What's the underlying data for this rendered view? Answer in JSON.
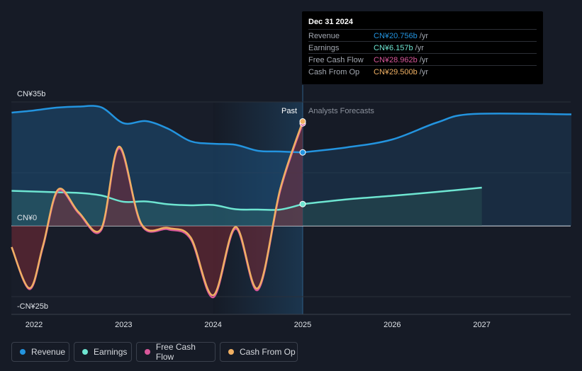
{
  "chart_data": {
    "type": "line",
    "y_axis": {
      "tick_labels": [
        "CN¥35b",
        "CN¥0",
        "-CN¥25b"
      ],
      "ylim": [
        -25,
        35
      ],
      "unit": "CN¥ billions"
    },
    "x_axis": {
      "tick_labels": [
        "2022",
        "2023",
        "2024",
        "2025",
        "2026",
        "2027"
      ],
      "xlim": [
        2021.75,
        2028.0
      ]
    },
    "past_label": "Past",
    "forecast_label": "Analysts Forecasts",
    "past_end": 2025.0,
    "series": [
      {
        "name": "Revenue",
        "color": "#2394df",
        "past": [
          [
            2021.75,
            32.0
          ],
          [
            2022.0,
            32.6
          ],
          [
            2022.25,
            33.4
          ],
          [
            2022.5,
            33.7
          ],
          [
            2022.75,
            33.5
          ],
          [
            2023.0,
            29.0
          ],
          [
            2023.25,
            29.6
          ],
          [
            2023.5,
            27.4
          ],
          [
            2023.75,
            23.9
          ],
          [
            2024.0,
            23.2
          ],
          [
            2024.25,
            22.9
          ],
          [
            2024.5,
            21.2
          ],
          [
            2024.75,
            21.0
          ],
          [
            2025.0,
            20.756
          ]
        ],
        "forecast": [
          [
            2025.0,
            20.756
          ],
          [
            2025.5,
            22.2
          ],
          [
            2026.0,
            24.4
          ],
          [
            2026.5,
            29.2
          ],
          [
            2026.9,
            31.6
          ],
          [
            2028.0,
            31.5
          ]
        ]
      },
      {
        "name": "Earnings",
        "color": "#6ee5d1",
        "past": [
          [
            2021.75,
            9.9
          ],
          [
            2022.0,
            9.7
          ],
          [
            2022.25,
            9.5
          ],
          [
            2022.5,
            9.3
          ],
          [
            2022.75,
            8.6
          ],
          [
            2023.0,
            6.8
          ],
          [
            2023.25,
            6.9
          ],
          [
            2023.5,
            6.1
          ],
          [
            2023.75,
            5.8
          ],
          [
            2024.0,
            5.9
          ],
          [
            2024.25,
            4.7
          ],
          [
            2024.5,
            4.6
          ],
          [
            2024.75,
            4.6
          ],
          [
            2025.0,
            6.157
          ]
        ],
        "forecast": [
          [
            2025.0,
            6.157
          ],
          [
            2025.5,
            7.5
          ],
          [
            2026.0,
            8.5
          ],
          [
            2026.5,
            9.6
          ],
          [
            2027.0,
            10.8
          ]
        ]
      },
      {
        "name": "Free Cash Flow",
        "color": "#d9579a",
        "past": [
          [
            2021.75,
            -6.0
          ],
          [
            2021.95,
            -17.9
          ],
          [
            2022.1,
            -6.0
          ],
          [
            2022.27,
            9.9
          ],
          [
            2022.5,
            3.5
          ],
          [
            2022.75,
            -1.2
          ],
          [
            2022.95,
            21.9
          ],
          [
            2023.2,
            0.2
          ],
          [
            2023.5,
            -1.0
          ],
          [
            2023.75,
            -3.8
          ],
          [
            2024.0,
            -20.2
          ],
          [
            2024.25,
            -0.8
          ],
          [
            2024.5,
            -18.1
          ],
          [
            2024.75,
            10.0
          ],
          [
            2025.0,
            28.962
          ]
        ]
      },
      {
        "name": "Cash From Op",
        "color": "#f0b063",
        "past": [
          [
            2021.75,
            -6.0
          ],
          [
            2021.95,
            -17.6
          ],
          [
            2022.1,
            -5.6
          ],
          [
            2022.27,
            10.3
          ],
          [
            2022.5,
            3.8
          ],
          [
            2022.75,
            -0.8
          ],
          [
            2022.95,
            22.4
          ],
          [
            2023.2,
            0.5
          ],
          [
            2023.5,
            -0.6
          ],
          [
            2023.75,
            -3.3
          ],
          [
            2024.0,
            -19.6
          ],
          [
            2024.25,
            -0.3
          ],
          [
            2024.5,
            -17.6
          ],
          [
            2024.75,
            10.5
          ],
          [
            2025.0,
            29.5
          ]
        ]
      }
    ]
  },
  "tooltip": {
    "date": "Dec 31 2024",
    "rows": [
      {
        "label": "Revenue",
        "value": "CN¥20.756b",
        "unit": "/yr",
        "color": "#2394df"
      },
      {
        "label": "Earnings",
        "value": "CN¥6.157b",
        "unit": "/yr",
        "color": "#6ee5d1"
      },
      {
        "label": "Free Cash Flow",
        "value": "CN¥28.962b",
        "unit": "/yr",
        "color": "#d9579a"
      },
      {
        "label": "Cash From Op",
        "value": "CN¥29.500b",
        "unit": "/yr",
        "color": "#f0b063"
      }
    ]
  },
  "legend": [
    {
      "label": "Revenue",
      "color": "#2394df"
    },
    {
      "label": "Earnings",
      "color": "#6ee5d1"
    },
    {
      "label": "Free Cash Flow",
      "color": "#d9579a"
    },
    {
      "label": "Cash From Op",
      "color": "#f0b063"
    }
  ]
}
